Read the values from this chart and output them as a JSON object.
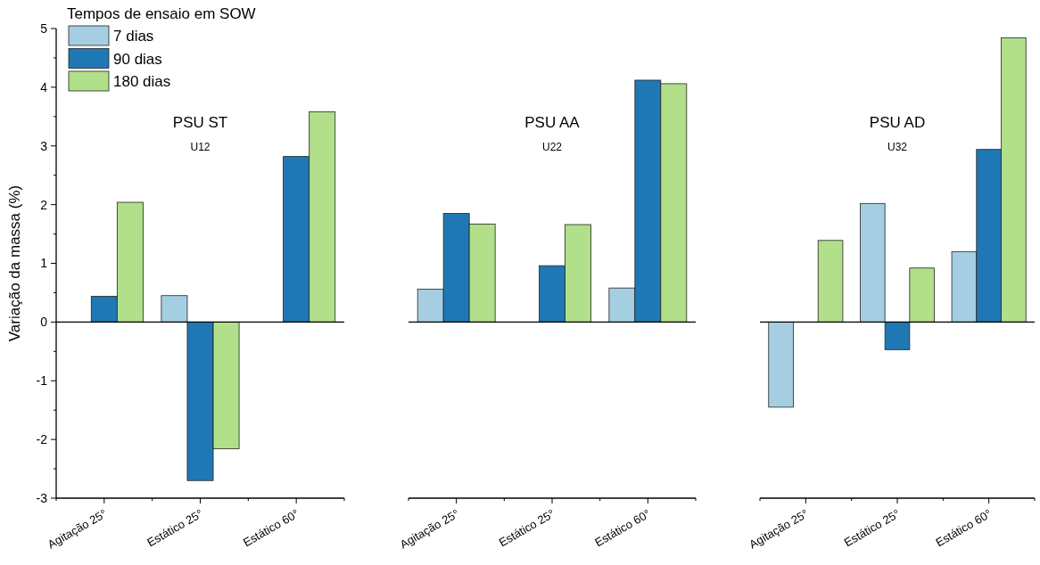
{
  "chart_data": [
    {
      "type": "bar",
      "title": "PSU ST",
      "subtitle": "U12",
      "ylabel": "Variação da massa (%)",
      "legend_title": "Tempos de ensaio em SOW",
      "legend": "top left",
      "categories": [
        "Agitação 25°",
        "Estático 25°",
        "Estático 60°"
      ],
      "series": [
        {
          "name": "7 dias",
          "color": "#a6cee3",
          "values": [
            null,
            0.45,
            null
          ]
        },
        {
          "name": "90 dias",
          "color": "#1f78b4",
          "values": [
            0.44,
            -2.7,
            2.82
          ]
        },
        {
          "name": "180 dias",
          "color": "#b2df8a",
          "values": [
            2.04,
            -2.16,
            3.58
          ]
        }
      ],
      "ylim": [
        -3,
        5
      ],
      "yticks": [
        -3,
        {
          "value": -2.5,
          "label": null
        },
        -2,
        {
          "value": -1.5,
          "label": null
        },
        -1,
        {
          "value": -0.5,
          "label": null
        },
        0,
        {
          "value": 0.5,
          "label": null
        },
        1,
        {
          "value": 1.5,
          "label": null
        },
        2,
        {
          "value": 2.5,
          "label": null
        },
        3,
        {
          "value": 3.5,
          "label": null
        },
        4,
        {
          "value": 4.5,
          "label": null
        },
        5
      ]
    },
    {
      "type": "bar",
      "title": "PSU AA",
      "subtitle": "U22",
      "tick_labels": "x",
      "categories": [
        "Agitação 25°",
        "Estático 25°",
        "Estático 60°"
      ],
      "series": [
        {
          "color": "#a6cee3",
          "values": [
            0.56,
            null,
            0.58
          ]
        },
        {
          "color": "#1f78b4",
          "values": [
            1.85,
            0.96,
            4.12
          ]
        },
        {
          "color": "#b2df8a",
          "values": [
            1.67,
            1.66,
            4.06
          ]
        }
      ],
      "ylim": [
        -3,
        5
      ]
    },
    {
      "type": "bar",
      "title": "PSU AD",
      "subtitle": "U32",
      "tick_labels": "x",
      "categories": [
        "Agitação 25°",
        "Estático 25°",
        "Estático 60°"
      ],
      "series": [
        {
          "color": "#a6cee3",
          "values": [
            -1.45,
            2.02,
            1.2
          ]
        },
        {
          "color": "#1f78b4",
          "values": [
            null,
            -0.47,
            2.94
          ]
        },
        {
          "color": "#b2df8a",
          "values": [
            1.39,
            0.92,
            4.84
          ]
        }
      ],
      "ylim": [
        -3,
        5
      ]
    }
  ]
}
